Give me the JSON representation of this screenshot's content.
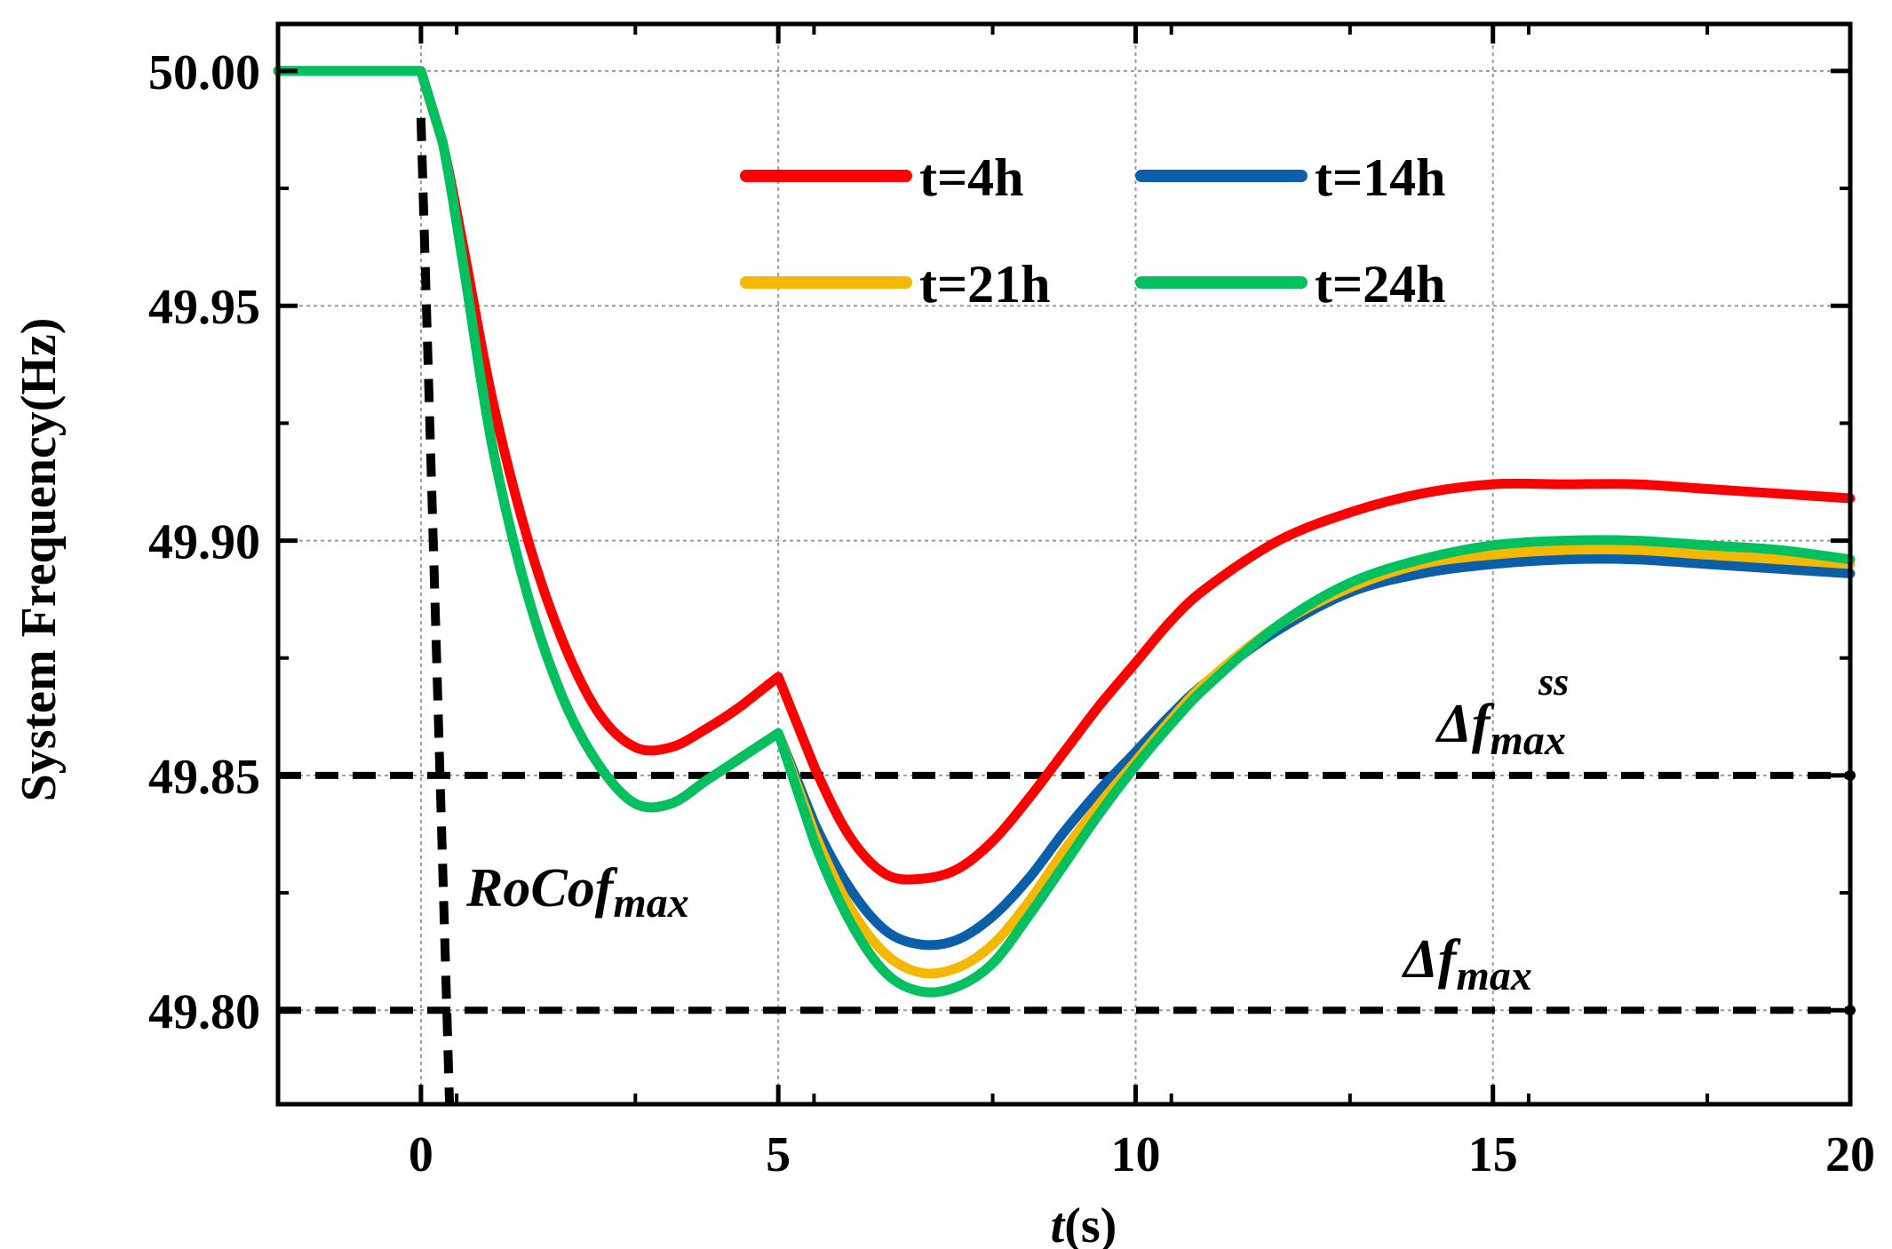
{
  "chart_data": {
    "type": "line",
    "ylabel": "System Frequency(Hz)",
    "xlabel_italic": "t",
    "xlabel_rest": "(s)",
    "xlim": [
      -2,
      20
    ],
    "ylim": [
      49.78,
      50.01
    ],
    "x_ticks": [
      0,
      5,
      10,
      15,
      20
    ],
    "y_ticks": [
      49.8,
      49.85,
      49.9,
      49.95,
      50.0
    ],
    "y_tick_labels": [
      "49.80",
      "49.85",
      "49.90",
      "49.95",
      "50.00"
    ],
    "x_tick_labels": [
      "0",
      "5",
      "10",
      "15",
      "20"
    ],
    "grid": true,
    "legend_position": "top-center",
    "series": [
      {
        "name": "t=4h",
        "color": "#ff0000",
        "points": [
          [
            -2,
            50.0
          ],
          [
            0,
            50.0
          ],
          [
            0.3,
            49.985
          ],
          [
            0.6,
            49.962
          ],
          [
            1,
            49.93
          ],
          [
            1.5,
            49.9
          ],
          [
            2,
            49.878
          ],
          [
            2.5,
            49.863
          ],
          [
            3,
            49.856
          ],
          [
            3.5,
            49.856
          ],
          [
            4,
            49.86
          ],
          [
            4.5,
            49.865
          ],
          [
            5,
            49.871
          ],
          [
            5.5,
            49.852
          ],
          [
            6,
            49.837
          ],
          [
            6.5,
            49.829
          ],
          [
            7,
            49.828
          ],
          [
            7.5,
            49.83
          ],
          [
            8,
            49.836
          ],
          [
            8.5,
            49.845
          ],
          [
            9,
            49.855
          ],
          [
            9.5,
            49.865
          ],
          [
            10,
            49.874
          ],
          [
            10.5,
            49.883
          ],
          [
            11,
            49.89
          ],
          [
            12,
            49.9
          ],
          [
            13,
            49.906
          ],
          [
            14,
            49.91
          ],
          [
            15,
            49.912
          ],
          [
            16,
            49.912
          ],
          [
            17,
            49.912
          ],
          [
            18,
            49.911
          ],
          [
            19,
            49.91
          ],
          [
            20,
            49.909
          ]
        ]
      },
      {
        "name": "t=14h",
        "color": "#0a5fa8",
        "points": [
          [
            -2,
            50.0
          ],
          [
            0,
            50.0
          ],
          [
            0.3,
            49.985
          ],
          [
            0.6,
            49.958
          ],
          [
            1,
            49.92
          ],
          [
            1.5,
            49.888
          ],
          [
            2,
            49.866
          ],
          [
            2.5,
            49.852
          ],
          [
            3,
            49.844
          ],
          [
            3.5,
            49.844
          ],
          [
            4,
            49.849
          ],
          [
            4.5,
            49.854
          ],
          [
            5,
            49.859
          ],
          [
            5.5,
            49.84
          ],
          [
            6,
            49.826
          ],
          [
            6.5,
            49.817
          ],
          [
            7,
            49.814
          ],
          [
            7.5,
            49.815
          ],
          [
            8,
            49.82
          ],
          [
            8.5,
            49.828
          ],
          [
            9,
            49.838
          ],
          [
            9.5,
            49.847
          ],
          [
            10,
            49.855
          ],
          [
            10.5,
            49.863
          ],
          [
            11,
            49.87
          ],
          [
            12,
            49.881
          ],
          [
            13,
            49.889
          ],
          [
            14,
            49.893
          ],
          [
            15,
            49.895
          ],
          [
            16,
            49.896
          ],
          [
            17,
            49.896
          ],
          [
            18,
            49.895
          ],
          [
            19,
            49.894
          ],
          [
            20,
            49.893
          ]
        ]
      },
      {
        "name": "t=21h",
        "color": "#f5b800",
        "points": [
          [
            -2,
            50.0
          ],
          [
            0,
            50.0
          ],
          [
            0.3,
            49.985
          ],
          [
            0.6,
            49.958
          ],
          [
            1,
            49.92
          ],
          [
            1.5,
            49.888
          ],
          [
            2,
            49.866
          ],
          [
            2.5,
            49.852
          ],
          [
            3,
            49.844
          ],
          [
            3.5,
            49.844
          ],
          [
            4,
            49.849
          ],
          [
            4.5,
            49.854
          ],
          [
            5,
            49.859
          ],
          [
            5.5,
            49.838
          ],
          [
            6,
            49.822
          ],
          [
            6.5,
            49.812
          ],
          [
            7,
            49.808
          ],
          [
            7.5,
            49.809
          ],
          [
            8,
            49.814
          ],
          [
            8.5,
            49.823
          ],
          [
            9,
            49.834
          ],
          [
            9.5,
            49.844
          ],
          [
            10,
            49.853
          ],
          [
            10.5,
            49.862
          ],
          [
            11,
            49.87
          ],
          [
            12,
            49.882
          ],
          [
            13,
            49.89
          ],
          [
            14,
            49.895
          ],
          [
            15,
            49.897
          ],
          [
            16,
            49.898
          ],
          [
            17,
            49.898
          ],
          [
            18,
            49.897
          ],
          [
            19,
            49.896
          ],
          [
            20,
            49.895
          ]
        ]
      },
      {
        "name": "t=24h",
        "color": "#00c060",
        "points": [
          [
            -2,
            50.0
          ],
          [
            0,
            50.0
          ],
          [
            0.3,
            49.985
          ],
          [
            0.6,
            49.958
          ],
          [
            1,
            49.92
          ],
          [
            1.5,
            49.888
          ],
          [
            2,
            49.866
          ],
          [
            2.5,
            49.852
          ],
          [
            3,
            49.844
          ],
          [
            3.5,
            49.844
          ],
          [
            4,
            49.849
          ],
          [
            4.5,
            49.854
          ],
          [
            5,
            49.859
          ],
          [
            5.5,
            49.836
          ],
          [
            6,
            49.819
          ],
          [
            6.5,
            49.808
          ],
          [
            7,
            49.804
          ],
          [
            7.5,
            49.805
          ],
          [
            8,
            49.81
          ],
          [
            8.5,
            49.82
          ],
          [
            9,
            49.831
          ],
          [
            9.5,
            49.842
          ],
          [
            10,
            49.852
          ],
          [
            10.5,
            49.861
          ],
          [
            11,
            49.869
          ],
          [
            12,
            49.882
          ],
          [
            13,
            49.891
          ],
          [
            14,
            49.896
          ],
          [
            15,
            49.899
          ],
          [
            16,
            49.9
          ],
          [
            17,
            49.9
          ],
          [
            18,
            49.899
          ],
          [
            19,
            49.898
          ],
          [
            20,
            49.896
          ]
        ]
      }
    ],
    "reference_lines": [
      {
        "name": "delta-f-ss-max-line",
        "orientation": "horizontal",
        "y": 49.85
      },
      {
        "name": "delta-f-max-line",
        "orientation": "horizontal",
        "y": 49.8
      },
      {
        "name": "rocof-max-line",
        "orientation": "slope",
        "points": [
          [
            0,
            49.99
          ],
          [
            0.4,
            49.78
          ]
        ]
      }
    ],
    "annotations": {
      "rocof_base": "RoCof",
      "rocof_sub": "max",
      "delta_f_ss_base": "Δf",
      "delta_f_ss_sub": "max",
      "delta_f_ss_sup": "ss",
      "delta_f_base": "Δf",
      "delta_f_sub": "max"
    }
  }
}
